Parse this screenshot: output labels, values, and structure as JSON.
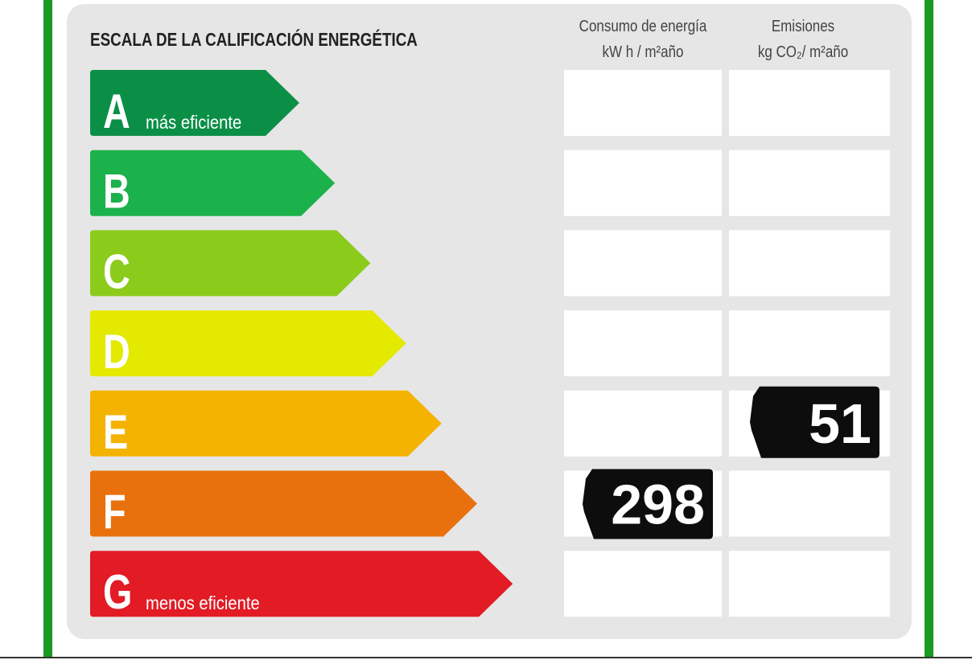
{
  "title": "ESCALA DE LA CALIFICACIÓN ENERGÉTICA",
  "columns": [
    {
      "name": "Consumo de energía",
      "unit": "kW h / m²año"
    },
    {
      "name": "Emisiones",
      "unit": "kg CO₂/ m²año"
    }
  ],
  "rows": [
    {
      "letter": "A",
      "note": "más eficiente",
      "color": "#0b8f47"
    },
    {
      "letter": "B",
      "color": "#1bb14b"
    },
    {
      "letter": "C",
      "color": "#8bcb1c"
    },
    {
      "letter": "D",
      "color": "#e3ea00"
    },
    {
      "letter": "E",
      "color": "#f4b300",
      "emissions": 51
    },
    {
      "letter": "F",
      "color": "#e8710d",
      "consumption": 298
    },
    {
      "letter": "G",
      "note": "menos eficiente",
      "color": "#e21b24"
    }
  ]
}
